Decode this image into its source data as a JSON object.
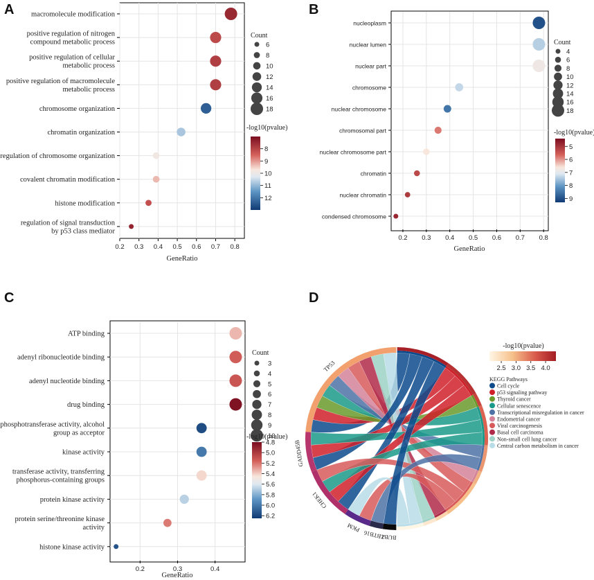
{
  "panels": {
    "a": "A",
    "b": "B",
    "c": "C",
    "d": "D"
  },
  "chart_data": [
    {
      "id": "A",
      "type": "scatter",
      "title": "",
      "xlabel": "GeneRatio",
      "ylabel": "",
      "xlim": [
        0.2,
        0.85
      ],
      "xticks": [
        "0.2",
        "0.3",
        "0.4",
        "0.5",
        "0.6",
        "0.7",
        "0.8"
      ],
      "categories": [
        [
          "macromolecule modification"
        ],
        [
          "positive regulation of nitrogen",
          "compound metabolic process"
        ],
        [
          "positive regulation of cellular",
          "metabolic process"
        ],
        [
          "positive regulation of macromolecule",
          "metabolic process"
        ],
        [
          "chromosome organization"
        ],
        [
          "chromatin organization"
        ],
        [
          "regulation of chromosome organization"
        ],
        [
          "covalent chromatin modification"
        ],
        [
          "histone modification"
        ],
        [
          "regulation of signal transduction",
          "by p53 class mediator"
        ]
      ],
      "x": [
        0.78,
        0.7,
        0.7,
        0.7,
        0.65,
        0.52,
        0.39,
        0.39,
        0.35,
        0.26
      ],
      "count": [
        18,
        16,
        16,
        16,
        15,
        12,
        9,
        9,
        8,
        6
      ],
      "neglog10p": [
        7.5,
        8.1,
        7.9,
        7.9,
        12.4,
        10.8,
        9.9,
        9.3,
        8.2,
        7.4
      ],
      "size_legend": {
        "title": "Count",
        "values": [
          6,
          8,
          10,
          12,
          14,
          16,
          18
        ]
      },
      "color_legend": {
        "title": "-log10(pvalue)",
        "min": 7,
        "max": 13,
        "ticks": [
          "8",
          "9",
          "10",
          "11",
          "12"
        ],
        "tick_values": [
          8,
          9,
          10,
          11,
          12
        ],
        "reversed": true
      }
    },
    {
      "id": "B",
      "type": "scatter",
      "title": "",
      "xlabel": "GeneRatio",
      "ylabel": "",
      "xlim": [
        0.15,
        0.82
      ],
      "xticks": [
        "0.2",
        "0.3",
        "0.4",
        "0.5",
        "0.6",
        "0.7",
        "0.8"
      ],
      "categories": [
        [
          "nucleoplasm"
        ],
        [
          "nuclear lumen"
        ],
        [
          "nuclear part"
        ],
        [
          "chromosome"
        ],
        [
          "nuclear chromosome"
        ],
        [
          "chromosomal part"
        ],
        [
          "nuclear chromosome part"
        ],
        [
          "chromatin"
        ],
        [
          "nuclear chromatin"
        ],
        [
          "condensed chromosome"
        ]
      ],
      "x": [
        0.78,
        0.78,
        0.78,
        0.44,
        0.39,
        0.35,
        0.3,
        0.26,
        0.22,
        0.17
      ],
      "count": [
        18,
        18,
        18,
        10,
        9,
        8,
        7,
        6,
        5,
        4
      ],
      "neglog10p": [
        9.0,
        7.4,
        6.8,
        7.3,
        8.5,
        5.8,
        6.6,
        5.3,
        5.1,
        4.8
      ],
      "size_legend": {
        "title": "Count",
        "values": [
          4,
          6,
          8,
          10,
          12,
          14,
          16,
          18
        ]
      },
      "color_legend": {
        "title": "-log10(pvalue)",
        "min": 4.4,
        "max": 9.3,
        "ticks": [
          "5",
          "6",
          "7",
          "8",
          "9"
        ],
        "tick_values": [
          5,
          6,
          7,
          8,
          9
        ],
        "reversed": true
      }
    },
    {
      "id": "C",
      "type": "scatter",
      "title": "",
      "xlabel": "GeneRatio",
      "ylabel": "",
      "xlim": [
        0.12,
        0.48
      ],
      "xticks": [
        "0.2",
        "0.3",
        "0.4"
      ],
      "categories": [
        [
          "ATP binding"
        ],
        [
          "adenyl ribonucleotide binding"
        ],
        [
          "adenyl nucleotide binding"
        ],
        [
          "drug binding"
        ],
        [
          "phosphotransferase activity, alcohol",
          "group as acceptor"
        ],
        [
          "kinase activity"
        ],
        [
          "transferase activity, transferring",
          "phosphorus-containing groups"
        ],
        [
          "protein kinase activity"
        ],
        [
          "protein serine/threonine kinase",
          "activity"
        ],
        [
          "histone kinase activity"
        ]
      ],
      "x": [
        0.455,
        0.455,
        0.455,
        0.455,
        0.364,
        0.364,
        0.364,
        0.318,
        0.273,
        0.136
      ],
      "count": [
        10,
        10,
        10,
        10,
        8,
        8,
        8,
        7,
        6,
        3
      ],
      "neglog10p": [
        5.35,
        5.15,
        5.12,
        4.82,
        6.18,
        6.0,
        5.42,
        5.68,
        5.22,
        6.15
      ],
      "size_legend": {
        "title": "Count",
        "values": [
          3,
          4,
          5,
          6,
          7,
          8,
          9,
          10
        ]
      },
      "color_legend": {
        "title": "-log10(pvalue)",
        "min": 4.8,
        "max": 6.25,
        "ticks": [
          "4.8",
          "5.0",
          "5.2",
          "5.4",
          "5.6",
          "5.8",
          "6.0",
          "6.2"
        ],
        "tick_values": [
          4.8,
          5.0,
          5.2,
          5.4,
          5.6,
          5.8,
          6.0,
          6.2
        ],
        "reversed": true
      }
    },
    {
      "id": "D",
      "type": "chord",
      "genes": [
        "TP53",
        "GADD45B",
        "CHEK1",
        "PKM",
        "ZBTB16",
        "BUB1"
      ],
      "pathways": [
        "Cell cycle",
        "p53 signaling pathway",
        "Thyroid cancer",
        "Cellular senescence",
        "Transcriptional misregulation in cancer",
        "Endometrial cancer",
        "Viral carcinogenesis",
        "Basal cell carcinoma",
        "Non-small cell lung cancer",
        "Central carbon metabolism in cancer"
      ],
      "pathway_colors": [
        "#0c4a8c",
        "#d0202a",
        "#6a9a2c",
        "#1a9a8a",
        "#4e72a6",
        "#d4829a",
        "#d85a5a",
        "#b02a4a",
        "#9ed2c6",
        "#b8dce8"
      ],
      "gene_colors": [
        "#f2a06e",
        "#b8366e",
        "#b0306a",
        "#5a2a8a",
        "#2a2a4a",
        "#0a0a0a"
      ],
      "pathway_neglog10p": [
        4.3,
        4.1,
        3.9,
        3.6,
        3.2,
        3.0,
        2.9,
        2.6,
        2.3,
        2.1
      ],
      "links": [
        {
          "gene": "TP53",
          "pathway": "Cell cycle"
        },
        {
          "gene": "TP53",
          "pathway": "p53 signaling pathway"
        },
        {
          "gene": "TP53",
          "pathway": "Thyroid cancer"
        },
        {
          "gene": "TP53",
          "pathway": "Cellular senescence"
        },
        {
          "gene": "TP53",
          "pathway": "Transcriptional misregulation in cancer"
        },
        {
          "gene": "TP53",
          "pathway": "Endometrial cancer"
        },
        {
          "gene": "TP53",
          "pathway": "Viral carcinogenesis"
        },
        {
          "gene": "TP53",
          "pathway": "Basal cell carcinoma"
        },
        {
          "gene": "TP53",
          "pathway": "Non-small cell lung cancer"
        },
        {
          "gene": "TP53",
          "pathway": "Central carbon metabolism in cancer"
        },
        {
          "gene": "GADD45B",
          "pathway": "Cell cycle"
        },
        {
          "gene": "GADD45B",
          "pathway": "p53 signaling pathway"
        },
        {
          "gene": "GADD45B",
          "pathway": "Cellular senescence"
        },
        {
          "gene": "CHEK1",
          "pathway": "Cell cycle"
        },
        {
          "gene": "CHEK1",
          "pathway": "p53 signaling pathway"
        },
        {
          "gene": "CHEK1",
          "pathway": "Cellular senescence"
        },
        {
          "gene": "CHEK1",
          "pathway": "Viral carcinogenesis"
        },
        {
          "gene": "PKM",
          "pathway": "Viral carcinogenesis"
        },
        {
          "gene": "PKM",
          "pathway": "Central carbon metabolism in cancer"
        },
        {
          "gene": "ZBTB16",
          "pathway": "Transcriptional misregulation in cancer"
        },
        {
          "gene": "BUB1",
          "pathway": "Cell cycle"
        }
      ],
      "color_legend": {
        "title": "-log10(pvalue)",
        "min": 2.1,
        "max": 4.35,
        "ticks": [
          "2.5",
          "3.0",
          "3.5",
          "4.0"
        ],
        "tick_values": [
          2.5,
          3.0,
          3.5,
          4.0
        ]
      },
      "pathway_legend_title": "KEGG Pathways"
    }
  ]
}
